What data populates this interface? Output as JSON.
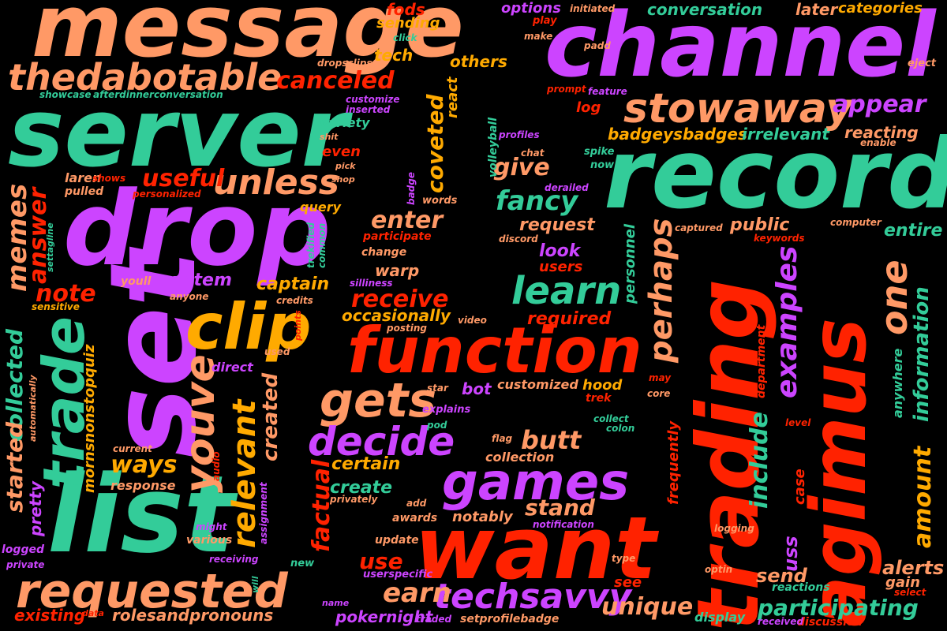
{
  "title": "Word cloud",
  "palette": {
    "orange": "#ff9966",
    "green": "#33cc99",
    "purple": "#cc44ff",
    "red": "#ff2200",
    "amber": "#ffaa00"
  },
  "words": [
    {
      "text": "message",
      "color": "orange"
    },
    {
      "text": "channel",
      "color": "purple"
    },
    {
      "text": "server",
      "color": "green"
    },
    {
      "text": "record",
      "color": "green"
    },
    {
      "text": "drop",
      "color": "purple"
    },
    {
      "text": "set",
      "color": "purple"
    },
    {
      "text": "list",
      "color": "green"
    },
    {
      "text": "trading",
      "color": "red"
    },
    {
      "text": "agimus",
      "color": "red"
    },
    {
      "text": "want",
      "color": "red"
    },
    {
      "text": "function",
      "color": "red"
    },
    {
      "text": "thedabotable",
      "color": "orange"
    },
    {
      "text": "stowaway",
      "color": "orange"
    },
    {
      "text": "clip",
      "color": "amber"
    },
    {
      "text": "trade",
      "color": "green"
    },
    {
      "text": "games",
      "color": "purple"
    },
    {
      "text": "requested",
      "color": "orange"
    },
    {
      "text": "youve",
      "color": "orange"
    },
    {
      "text": "gets",
      "color": "orange"
    },
    {
      "text": "unless",
      "color": "orange"
    },
    {
      "text": "decide",
      "color": "purple"
    },
    {
      "text": "techsavvy",
      "color": "purple"
    },
    {
      "text": "learn",
      "color": "green"
    },
    {
      "text": "perhaps",
      "color": "orange"
    },
    {
      "text": "one",
      "color": "orange"
    },
    {
      "text": "examples",
      "color": "purple"
    },
    {
      "text": "relevant",
      "color": "amber"
    },
    {
      "text": "memes",
      "color": "orange"
    },
    {
      "text": "canceled",
      "color": "red"
    },
    {
      "text": "fancy",
      "color": "green"
    },
    {
      "text": "receive",
      "color": "red"
    },
    {
      "text": "earn",
      "color": "orange"
    },
    {
      "text": "unique",
      "color": "orange"
    },
    {
      "text": "participating",
      "color": "green"
    },
    {
      "text": "appear",
      "color": "purple"
    },
    {
      "text": "include",
      "color": "green"
    },
    {
      "text": "amount",
      "color": "amber"
    },
    {
      "text": "information",
      "color": "green"
    },
    {
      "text": "collected",
      "color": "green"
    },
    {
      "text": "started",
      "color": "orange"
    },
    {
      "text": "answer",
      "color": "red"
    },
    {
      "text": "note",
      "color": "red"
    },
    {
      "text": "useful",
      "color": "red"
    },
    {
      "text": "ways",
      "color": "amber"
    },
    {
      "text": "butt",
      "color": "orange"
    },
    {
      "text": "enter",
      "color": "orange"
    },
    {
      "text": "give",
      "color": "orange"
    },
    {
      "text": "coveted",
      "color": "amber"
    },
    {
      "text": "stand",
      "color": "orange"
    },
    {
      "text": "use",
      "color": "red"
    },
    {
      "text": "factual",
      "color": "red"
    },
    {
      "text": "created",
      "color": "orange"
    },
    {
      "text": "badgeysbadges",
      "color": "amber"
    },
    {
      "text": "irrelevant",
      "color": "green"
    },
    {
      "text": "reacting",
      "color": "orange"
    },
    {
      "text": "personnel",
      "color": "green"
    },
    {
      "text": "public",
      "color": "orange"
    },
    {
      "text": "entire",
      "color": "green"
    },
    {
      "text": "alerts",
      "color": "orange"
    },
    {
      "text": "send",
      "color": "orange"
    },
    {
      "text": "uss",
      "color": "purple"
    },
    {
      "text": "gain",
      "color": "orange"
    },
    {
      "text": "anywhere",
      "color": "green"
    },
    {
      "text": "case",
      "color": "red"
    },
    {
      "text": "frequently",
      "color": "red"
    },
    {
      "text": "department",
      "color": "red"
    },
    {
      "text": "warp",
      "color": "orange"
    },
    {
      "text": "request",
      "color": "orange"
    },
    {
      "text": "look",
      "color": "purple"
    },
    {
      "text": "users",
      "color": "red"
    },
    {
      "text": "required",
      "color": "red"
    },
    {
      "text": "occasionally",
      "color": "amber"
    },
    {
      "text": "captain",
      "color": "amber"
    },
    {
      "text": "system",
      "color": "purple"
    },
    {
      "text": "pokernight",
      "color": "purple"
    },
    {
      "text": "rolesandpronouns",
      "color": "orange"
    },
    {
      "text": "existing",
      "color": "red"
    },
    {
      "text": "pretty",
      "color": "purple"
    },
    {
      "text": "customized",
      "color": "orange"
    },
    {
      "text": "hood",
      "color": "amber"
    },
    {
      "text": "trek",
      "color": "red"
    },
    {
      "text": "bot",
      "color": "purple"
    },
    {
      "text": "create",
      "color": "green"
    },
    {
      "text": "certain",
      "color": "amber"
    },
    {
      "text": "collection",
      "color": "orange"
    },
    {
      "text": "notably",
      "color": "orange"
    },
    {
      "text": "update",
      "color": "orange"
    },
    {
      "text": "awards",
      "color": "orange"
    },
    {
      "text": "add",
      "color": "orange"
    },
    {
      "text": "privately",
      "color": "orange"
    },
    {
      "text": "setprofilebadge",
      "color": "orange"
    },
    {
      "text": "userspecific",
      "color": "purple"
    },
    {
      "text": "traded",
      "color": "purple"
    },
    {
      "text": "name",
      "color": "purple"
    },
    {
      "text": "display",
      "color": "green"
    },
    {
      "text": "discussion",
      "color": "red"
    },
    {
      "text": "received",
      "color": "purple"
    },
    {
      "text": "reactions",
      "color": "green"
    },
    {
      "text": "select",
      "color": "red"
    },
    {
      "text": "see",
      "color": "red"
    },
    {
      "text": "type",
      "color": "orange"
    },
    {
      "text": "optin",
      "color": "orange"
    },
    {
      "text": "logging",
      "color": "orange"
    },
    {
      "text": "notification",
      "color": "purple"
    },
    {
      "text": "explains",
      "color": "purple"
    },
    {
      "text": "pod",
      "color": "green"
    },
    {
      "text": "star",
      "color": "orange"
    },
    {
      "text": "flag",
      "color": "orange"
    },
    {
      "text": "collect",
      "color": "green"
    },
    {
      "text": "colon",
      "color": "green"
    },
    {
      "text": "core",
      "color": "orange"
    },
    {
      "text": "level",
      "color": "red"
    },
    {
      "text": "may",
      "color": "red"
    },
    {
      "text": "computer",
      "color": "orange"
    },
    {
      "text": "keywords",
      "color": "red"
    },
    {
      "text": "captured",
      "color": "orange"
    },
    {
      "text": "query",
      "color": "amber"
    },
    {
      "text": "participate",
      "color": "red"
    },
    {
      "text": "change",
      "color": "orange"
    },
    {
      "text": "discord",
      "color": "orange"
    },
    {
      "text": "silliness",
      "color": "purple"
    },
    {
      "text": "posting",
      "color": "orange"
    },
    {
      "text": "video",
      "color": "orange"
    },
    {
      "text": "youll",
      "color": "orange"
    },
    {
      "text": "anyone",
      "color": "orange"
    },
    {
      "text": "credits",
      "color": "orange"
    },
    {
      "text": "sensitive",
      "color": "amber"
    },
    {
      "text": "settagline",
      "color": "green"
    },
    {
      "text": "trekified",
      "color": "green"
    },
    {
      "text": "common",
      "color": "green"
    },
    {
      "text": "points",
      "color": "red"
    },
    {
      "text": "used",
      "color": "orange"
    },
    {
      "text": "direct",
      "color": "purple"
    },
    {
      "text": "mornsnonstopquiz",
      "color": "amber"
    },
    {
      "text": "audio",
      "color": "red"
    },
    {
      "text": "current",
      "color": "orange"
    },
    {
      "text": "response",
      "color": "orange"
    },
    {
      "text": "assignment",
      "color": "purple"
    },
    {
      "text": "automatically",
      "color": "orange"
    },
    {
      "text": "might",
      "color": "purple"
    },
    {
      "text": "various",
      "color": "orange"
    },
    {
      "text": "logged",
      "color": "purple"
    },
    {
      "text": "private",
      "color": "purple"
    },
    {
      "text": "receiving",
      "color": "purple"
    },
    {
      "text": "new",
      "color": "green"
    },
    {
      "text": "will",
      "color": "green"
    },
    {
      "text": "data",
      "color": "red"
    },
    {
      "text": "laren",
      "color": "orange"
    },
    {
      "text": "shows",
      "color": "red"
    },
    {
      "text": "pulled",
      "color": "orange"
    },
    {
      "text": "personalized",
      "color": "red"
    },
    {
      "text": "variety",
      "color": "green"
    },
    {
      "text": "shit",
      "color": "orange"
    },
    {
      "text": "even",
      "color": "red"
    },
    {
      "text": "pick",
      "color": "orange"
    },
    {
      "text": "shop",
      "color": "orange"
    },
    {
      "text": "badge",
      "color": "purple"
    },
    {
      "text": "words",
      "color": "orange"
    },
    {
      "text": "volleyball",
      "color": "green"
    },
    {
      "text": "profiles",
      "color": "purple"
    },
    {
      "text": "chat",
      "color": "orange"
    },
    {
      "text": "derailed",
      "color": "purple"
    },
    {
      "text": "spike",
      "color": "green"
    },
    {
      "text": "now",
      "color": "green"
    },
    {
      "text": "enable",
      "color": "orange"
    },
    {
      "text": "log",
      "color": "red"
    },
    {
      "text": "feature",
      "color": "purple"
    },
    {
      "text": "prompt",
      "color": "red"
    },
    {
      "text": "react",
      "color": "amber"
    },
    {
      "text": "customize",
      "color": "purple"
    },
    {
      "text": "inserted",
      "color": "purple"
    },
    {
      "text": "showcase",
      "color": "green"
    },
    {
      "text": "afterdinnerconversation",
      "color": "green"
    },
    {
      "text": "dropsclips",
      "color": "orange"
    },
    {
      "text": "others",
      "color": "amber"
    },
    {
      "text": "tech",
      "color": "amber"
    },
    {
      "text": "click",
      "color": "green"
    },
    {
      "text": "sending",
      "color": "amber"
    },
    {
      "text": "fods",
      "color": "red"
    },
    {
      "text": "options",
      "color": "purple"
    },
    {
      "text": "play",
      "color": "red"
    },
    {
      "text": "make",
      "color": "orange"
    },
    {
      "text": "initiated",
      "color": "orange"
    },
    {
      "text": "padd",
      "color": "orange"
    },
    {
      "text": "conversation",
      "color": "green"
    },
    {
      "text": "later",
      "color": "orange"
    },
    {
      "text": "categories",
      "color": "amber"
    },
    {
      "text": "eject",
      "color": "orange"
    }
  ]
}
